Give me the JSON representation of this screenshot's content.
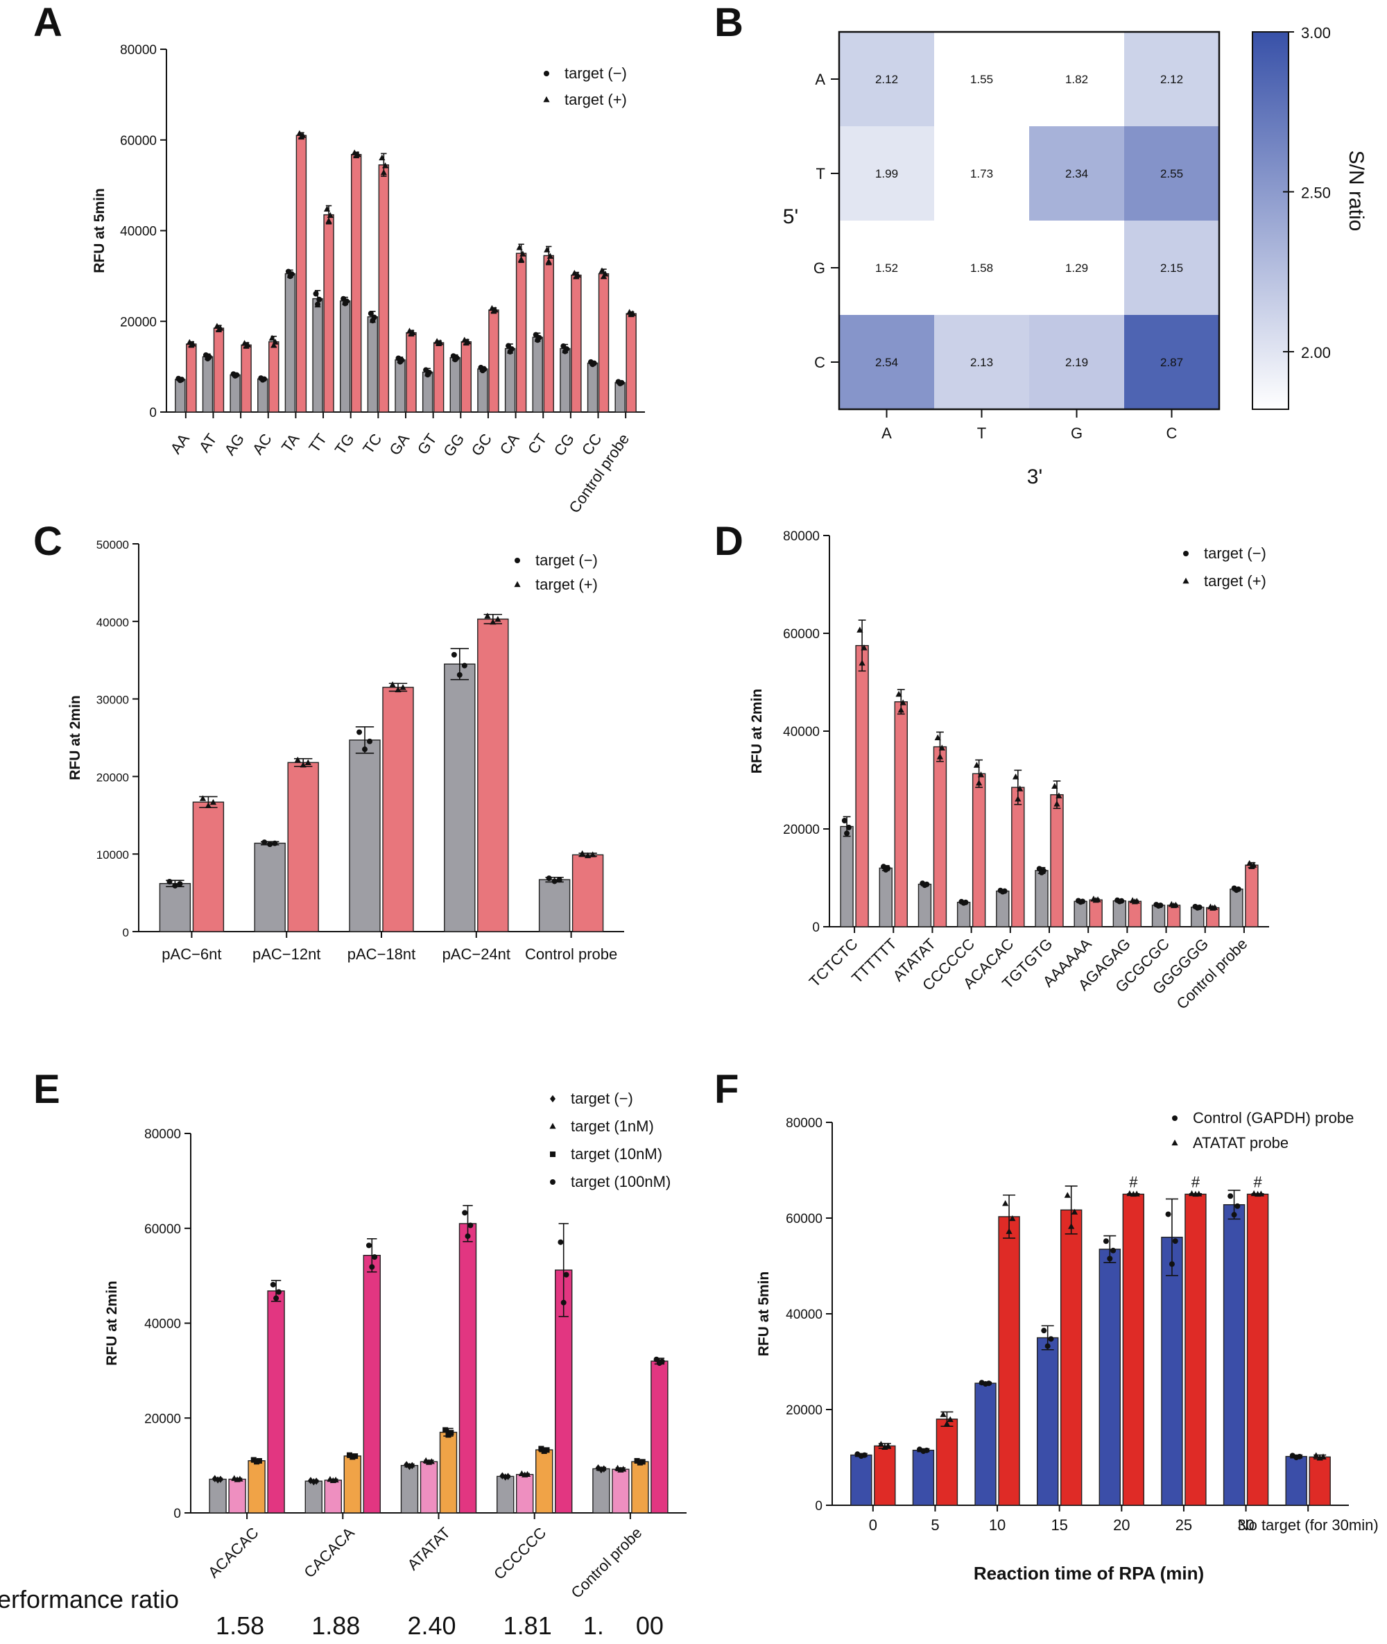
{
  "panels": {
    "A": {
      "letter": "A"
    },
    "B": {
      "letter": "B"
    },
    "C": {
      "letter": "C"
    },
    "D": {
      "letter": "D"
    },
    "E": {
      "letter": "E"
    },
    "F": {
      "letter": "F"
    }
  },
  "colors": {
    "gray": "#9e9ea4",
    "salmon": "#e8767c",
    "pink": "#ee8fc0",
    "orange": "#f0a347",
    "magenta": "#e23681",
    "blue": "#3b4ea8",
    "red": "#df2b26",
    "heat_low": "#ffffff",
    "heat_high": "#3851a8"
  },
  "chart_data": [
    {
      "id": "A",
      "type": "bar",
      "title": "",
      "ylabel": "RFU at 5min",
      "ylim": [
        0,
        80000
      ],
      "yticks": [
        0,
        20000,
        40000,
        60000,
        80000
      ],
      "categories": [
        "AA",
        "AT",
        "AG",
        "AC",
        "TA",
        "TT",
        "TG",
        "TC",
        "GA",
        "GT",
        "GG",
        "GC",
        "CA",
        "CT",
        "CG",
        "CC",
        "Control probe"
      ],
      "series": [
        {
          "name": "target (−)",
          "marker": "circle",
          "color": "#9e9ea4",
          "values": [
            7200,
            12200,
            8200,
            7300,
            30500,
            25000,
            24500,
            21000,
            11500,
            8800,
            12000,
            9500,
            14000,
            16500,
            14000,
            10800,
            6500
          ],
          "errors": [
            300,
            600,
            300,
            300,
            800,
            1800,
            800,
            1200,
            600,
            800,
            600,
            500,
            1000,
            900,
            900,
            400,
            300
          ]
        },
        {
          "name": "target (+)",
          "marker": "triangle",
          "color": "#e8767c",
          "values": [
            15000,
            18500,
            14800,
            15500,
            61000,
            43500,
            56800,
            54500,
            17500,
            15300,
            15500,
            22500,
            35000,
            34500,
            30200,
            30500,
            21700
          ],
          "errors": [
            500,
            600,
            500,
            1200,
            600,
            2000,
            500,
            2500,
            500,
            400,
            500,
            500,
            2000,
            2000,
            600,
            1000,
            400
          ]
        }
      ],
      "legend": "top-right"
    },
    {
      "id": "B",
      "type": "heatmap",
      "title": "",
      "xlabel": "3'",
      "ylabel": "5'",
      "x_categories": [
        "A",
        "T",
        "G",
        "C"
      ],
      "y_categories": [
        "A",
        "T",
        "G",
        "C"
      ],
      "values": [
        [
          2.12,
          1.55,
          1.82,
          2.12
        ],
        [
          1.99,
          1.73,
          2.34,
          2.55
        ],
        [
          1.52,
          1.58,
          1.29,
          2.15
        ],
        [
          2.54,
          2.13,
          2.19,
          2.87
        ]
      ],
      "colorbar": {
        "label": "S/N ratio",
        "range": [
          1.82,
          3.0
        ],
        "ticks": [
          "2.00",
          "2.50",
          "3.00"
        ]
      }
    },
    {
      "id": "C",
      "type": "bar",
      "title": "",
      "ylabel": "RFU at 2min",
      "ylim": [
        0,
        50000
      ],
      "yticks": [
        0,
        10000,
        20000,
        30000,
        40000,
        50000
      ],
      "categories": [
        "pAC−6nt",
        "pAC−12nt",
        "pAC−18nt",
        "pAC−24nt",
        "Control probe"
      ],
      "series": [
        {
          "name": "target (−)",
          "marker": "circle",
          "color": "#9e9ea4",
          "values": [
            6200,
            11400,
            24700,
            34500,
            6700
          ],
          "errors": [
            400,
            200,
            1700,
            2000,
            300
          ]
        },
        {
          "name": "target (+)",
          "marker": "triangle",
          "color": "#e8767c",
          "values": [
            16700,
            21800,
            31500,
            40300,
            9900
          ],
          "errors": [
            700,
            500,
            500,
            600,
            200
          ]
        }
      ],
      "legend": "top-right"
    },
    {
      "id": "D",
      "type": "bar",
      "title": "",
      "ylabel": "RFU at 2min",
      "ylim": [
        0,
        80000
      ],
      "yticks": [
        0,
        20000,
        40000,
        60000,
        80000
      ],
      "categories": [
        "TCTCTC",
        "TTTTTT",
        "ATATAT",
        "CCCCCC",
        "ACACAC",
        "TGTGTG",
        "AAAAAA",
        "AGAGAG",
        "GCGCGC",
        "GGGGGG",
        "Control probe"
      ],
      "series": [
        {
          "name": "target (−)",
          "marker": "circle",
          "color": "#9e9ea4",
          "values": [
            20500,
            12000,
            8700,
            5000,
            7300,
            11500,
            5200,
            5300,
            4400,
            4000,
            7700
          ],
          "errors": [
            2000,
            500,
            300,
            200,
            200,
            600,
            200,
            200,
            200,
            200,
            300
          ]
        },
        {
          "name": "target (+)",
          "marker": "triangle",
          "color": "#e8767c",
          "values": [
            57500,
            46000,
            36800,
            31300,
            28500,
            27000,
            5500,
            5200,
            4400,
            3900,
            12600
          ],
          "errors": [
            5200,
            2500,
            3000,
            2800,
            3500,
            2800,
            200,
            200,
            200,
            200,
            500
          ]
        }
      ],
      "legend": "top-right"
    },
    {
      "id": "E",
      "type": "bar",
      "title": "",
      "ylabel": "RFU at 2min",
      "ylim": [
        0,
        80000
      ],
      "yticks": [
        0,
        20000,
        40000,
        60000,
        80000
      ],
      "categories": [
        "ACACAC",
        "CACACA",
        "ATATAT",
        "CCCCCC",
        "Control probe"
      ],
      "series": [
        {
          "name": "target (−)",
          "marker": "diamond",
          "color": "#9e9ea4",
          "values": [
            7100,
            6700,
            10000,
            7700,
            9300
          ],
          "errors": [
            200,
            200,
            300,
            200,
            300
          ]
        },
        {
          "name": "target (1nM)",
          "marker": "triangle",
          "color": "#ee8fc0",
          "values": [
            7100,
            6900,
            10800,
            8100,
            9200
          ],
          "errors": [
            200,
            200,
            300,
            200,
            300
          ]
        },
        {
          "name": "target (10nM)",
          "marker": "square",
          "color": "#f0a347",
          "values": [
            11000,
            12000,
            17000,
            13300,
            10800
          ],
          "errors": [
            300,
            300,
            800,
            400,
            300
          ]
        },
        {
          "name": "target (100nM)",
          "marker": "circle",
          "color": "#e23681",
          "values": [
            46800,
            54300,
            61000,
            51200,
            32000
          ],
          "errors": [
            2200,
            3500,
            3800,
            9800,
            600
          ]
        }
      ],
      "performance_label": "Performance ratio",
      "performance_ratio": [
        "1.58",
        "1.88",
        "2.40",
        "1.81",
        "1.　 00"
      ],
      "legend": "top-right"
    },
    {
      "id": "F",
      "type": "bar",
      "title": "",
      "xlabel": "Reaction time of RPA (min)",
      "ylabel": "RFU at 5min",
      "ylim": [
        0,
        80000
      ],
      "yticks": [
        0,
        20000,
        40000,
        60000,
        80000
      ],
      "categories": [
        "0",
        "5",
        "10",
        "15",
        "20",
        "25",
        "30",
        "No target (for 30min)"
      ],
      "series": [
        {
          "name": "Control (GAPDH) probe",
          "marker": "circle",
          "color": "#3b4ea8",
          "values": [
            10500,
            11500,
            25500,
            35000,
            53500,
            56000,
            62800,
            10200
          ],
          "errors": [
            300,
            300,
            200,
            2500,
            2800,
            8000,
            3000,
            300
          ]
        },
        {
          "name": "ATATAT probe",
          "marker": "triangle",
          "color": "#df2b26",
          "values": [
            12400,
            18000,
            60300,
            61700,
            65000,
            65000,
            65000,
            10100
          ],
          "errors": [
            500,
            1500,
            4500,
            5000,
            100,
            100,
            100,
            400
          ]
        }
      ],
      "annotations": {
        "symbol": "#",
        "categories": [
          "20",
          "25",
          "30"
        ]
      },
      "legend": "top-right"
    }
  ]
}
